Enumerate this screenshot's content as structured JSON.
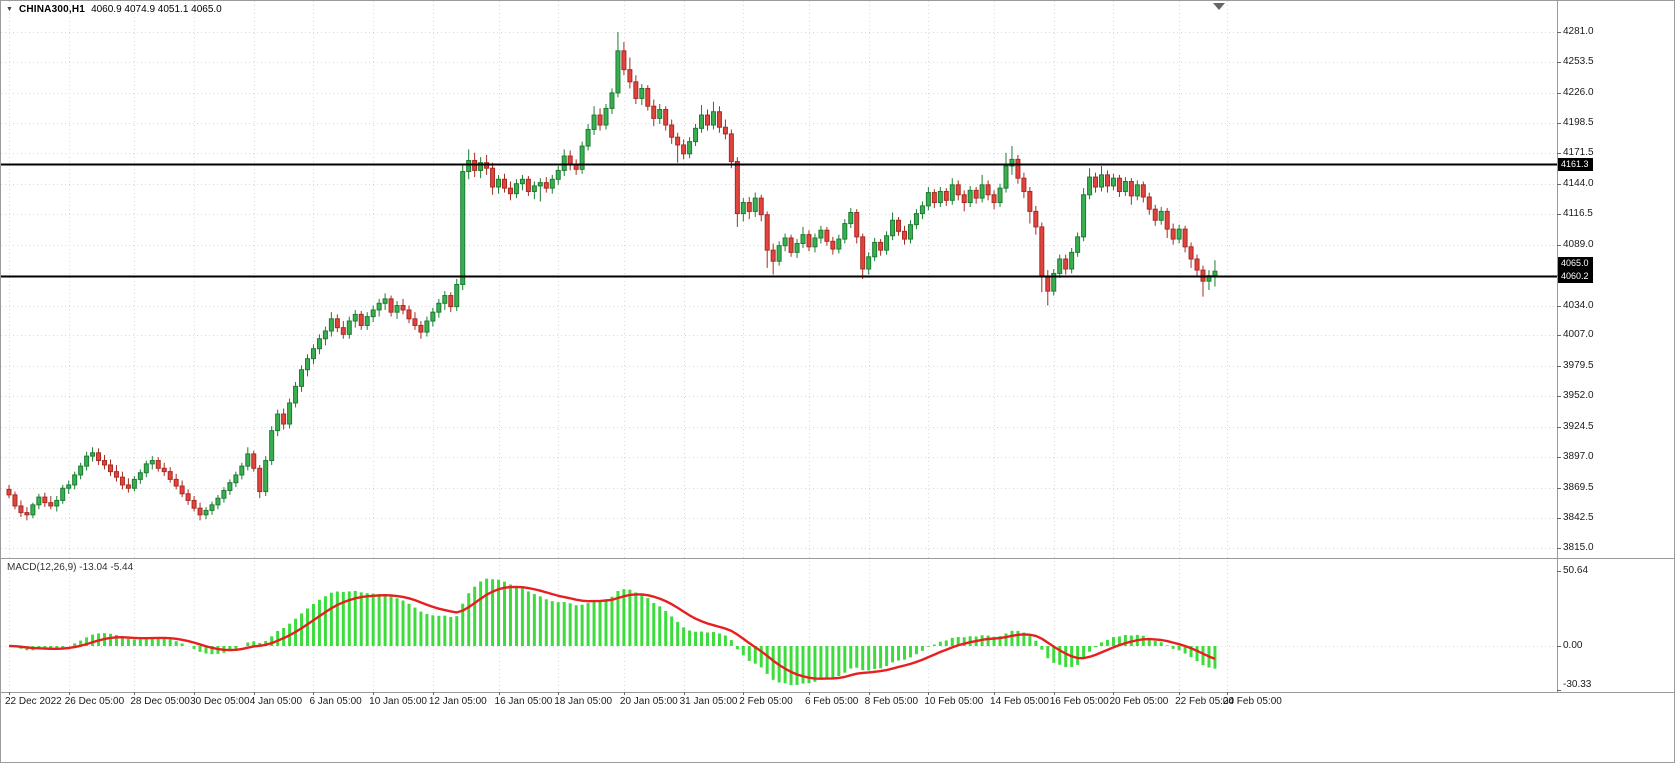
{
  "app": {
    "title": {
      "dropdown_icon": "▼",
      "symbol_timeframe": "CHINA300,H1",
      "ohlc": "4060.9 4074.9 4051.1 4065.0"
    }
  },
  "chart_data": {
    "type": "candlestick",
    "symbol": "CHINA300",
    "timeframe": "H1",
    "last_bar": {
      "open": 4060.9,
      "high": 4074.9,
      "low": 4051.1,
      "close": 4065.0
    },
    "current_price_label": "4065.0",
    "price_axis": {
      "view_max": 4309,
      "view_min": 3806,
      "ticks": [
        "4281.0",
        "4253.5",
        "4226.0",
        "4198.5",
        "4171.5",
        "4144.0",
        "4116.5",
        "4089.0",
        "4061.5",
        "4034.0",
        "4007.0",
        "3979.5",
        "3952.0",
        "3924.5",
        "3897.0",
        "3869.5",
        "3842.5",
        "3815.0"
      ]
    },
    "hlines": [
      {
        "price": 4161.3,
        "label": "4161.3"
      },
      {
        "price": 4060.2,
        "label": "4060.2"
      }
    ],
    "time_axis": {
      "labels": [
        {
          "label": "22 Dec 2022",
          "bar": 0
        },
        {
          "label": "26 Dec 05:00",
          "bar": 10
        },
        {
          "label": "28 Dec 05:00",
          "bar": 21
        },
        {
          "label": "30 Dec 05:00",
          "bar": 31
        },
        {
          "label": "4 Jan 05:00",
          "bar": 41
        },
        {
          "label": "6 Jan 05:00",
          "bar": 51
        },
        {
          "label": "10 Jan 05:00",
          "bar": 61
        },
        {
          "label": "12 Jan 05:00",
          "bar": 71
        },
        {
          "label": "16 Jan 05:00",
          "bar": 82
        },
        {
          "label": "18 Jan 05:00",
          "bar": 92
        },
        {
          "label": "20 Jan 05:00",
          "bar": 103
        },
        {
          "label": "31 Jan 05:00",
          "bar": 113
        },
        {
          "label": "2 Feb 05:00",
          "bar": 123
        },
        {
          "label": "6 Feb 05:00",
          "bar": 134
        },
        {
          "label": "8 Feb 05:00",
          "bar": 144
        },
        {
          "label": "10 Feb 05:00",
          "bar": 154
        },
        {
          "label": "14 Feb 05:00",
          "bar": 165
        },
        {
          "label": "16 Feb 05:00",
          "bar": 175
        },
        {
          "label": "20 Feb 05:00",
          "bar": 185
        },
        {
          "label": "22 Feb 05:00",
          "bar": 196
        },
        {
          "label": "24 Feb 05:00",
          "bar": 204
        }
      ]
    },
    "indicator": {
      "name": "MACD",
      "params": [
        12,
        26,
        9
      ],
      "label": "MACD(12,26,9) -13.04 -5.44",
      "main_value": -13.04,
      "signal_value": -5.44,
      "axis_ticks": [
        {
          "label": "50.64",
          "value": 50.64
        },
        {
          "label": "0.00",
          "value": 0
        },
        {
          "label": "-30.33",
          "value": -30.33
        }
      ]
    },
    "colors": {
      "up_fill": "#3aaf4f",
      "up_border": "#1c7c33",
      "down_fill": "#e0443c",
      "down_border": "#a82a24",
      "grid": "#d9d9d9",
      "separator": "#9a9a9a",
      "hline": "#000000",
      "hist": "#3ddc3d",
      "signal": "#e62020",
      "axis_text": "#1a1a1a"
    },
    "candles": [
      [
        3868,
        3872,
        3860,
        3863
      ],
      [
        3863,
        3866,
        3850,
        3853
      ],
      [
        3853,
        3858,
        3843,
        3847
      ],
      [
        3847,
        3852,
        3840,
        3845
      ],
      [
        3845,
        3856,
        3842,
        3854
      ],
      [
        3854,
        3864,
        3850,
        3861
      ],
      [
        3861,
        3865,
        3852,
        3856
      ],
      [
        3856,
        3862,
        3850,
        3853
      ],
      [
        3853,
        3862,
        3848,
        3858
      ],
      [
        3858,
        3872,
        3855,
        3869
      ],
      [
        3869,
        3876,
        3864,
        3872
      ],
      [
        3872,
        3884,
        3868,
        3881
      ],
      [
        3881,
        3892,
        3877,
        3889
      ],
      [
        3889,
        3902,
        3885,
        3898
      ],
      [
        3898,
        3906,
        3893,
        3901
      ],
      [
        3901,
        3905,
        3890,
        3894
      ],
      [
        3894,
        3899,
        3886,
        3890
      ],
      [
        3890,
        3895,
        3880,
        3884
      ],
      [
        3884,
        3890,
        3875,
        3879
      ],
      [
        3879,
        3884,
        3868,
        3872
      ],
      [
        3872,
        3878,
        3865,
        3869
      ],
      [
        3869,
        3880,
        3866,
        3877
      ],
      [
        3877,
        3886,
        3873,
        3883
      ],
      [
        3883,
        3894,
        3879,
        3891
      ],
      [
        3891,
        3898,
        3886,
        3894
      ],
      [
        3894,
        3897,
        3884,
        3887
      ],
      [
        3887,
        3892,
        3880,
        3884
      ],
      [
        3884,
        3888,
        3874,
        3877
      ],
      [
        3877,
        3882,
        3868,
        3871
      ],
      [
        3871,
        3876,
        3861,
        3864
      ],
      [
        3864,
        3868,
        3854,
        3858
      ],
      [
        3858,
        3862,
        3848,
        3851
      ],
      [
        3851,
        3856,
        3840,
        3845
      ],
      [
        3845,
        3852,
        3841,
        3849
      ],
      [
        3849,
        3857,
        3845,
        3854
      ],
      [
        3854,
        3863,
        3850,
        3860
      ],
      [
        3860,
        3870,
        3856,
        3867
      ],
      [
        3867,
        3877,
        3863,
        3874
      ],
      [
        3874,
        3884,
        3870,
        3881
      ],
      [
        3881,
        3892,
        3877,
        3889
      ],
      [
        3889,
        3906,
        3885,
        3900
      ],
      [
        3900,
        3903,
        3884,
        3887
      ],
      [
        3887,
        3890,
        3860,
        3866
      ],
      [
        3866,
        3898,
        3862,
        3894
      ],
      [
        3894,
        3925,
        3890,
        3921
      ],
      [
        3921,
        3940,
        3916,
        3936
      ],
      [
        3936,
        3941,
        3922,
        3927
      ],
      [
        3927,
        3950,
        3923,
        3946
      ],
      [
        3946,
        3965,
        3942,
        3961
      ],
      [
        3961,
        3980,
        3956,
        3976
      ],
      [
        3976,
        3990,
        3970,
        3986
      ],
      [
        3986,
        3999,
        3981,
        3995
      ],
      [
        3995,
        4008,
        3990,
        4004
      ],
      [
        4004,
        4015,
        3998,
        4011
      ],
      [
        4011,
        4028,
        4006,
        4022
      ],
      [
        4022,
        4026,
        4010,
        4014
      ],
      [
        4014,
        4020,
        4004,
        4008
      ],
      [
        4008,
        4024,
        4004,
        4020
      ],
      [
        4020,
        4030,
        4014,
        4026
      ],
      [
        4026,
        4029,
        4012,
        4016
      ],
      [
        4016,
        4028,
        4012,
        4024
      ],
      [
        4024,
        4034,
        4019,
        4030
      ],
      [
        4030,
        4040,
        4024,
        4036
      ],
      [
        4036,
        4045,
        4030,
        4040
      ],
      [
        4040,
        4043,
        4024,
        4028
      ],
      [
        4028,
        4038,
        4022,
        4034
      ],
      [
        4034,
        4040,
        4026,
        4030
      ],
      [
        4030,
        4034,
        4018,
        4022
      ],
      [
        4022,
        4028,
        4012,
        4016
      ],
      [
        4016,
        4020,
        4004,
        4010
      ],
      [
        4010,
        4024,
        4006,
        4020
      ],
      [
        4020,
        4032,
        4015,
        4028
      ],
      [
        4028,
        4040,
        4023,
        4036
      ],
      [
        4036,
        4047,
        4030,
        4043
      ],
      [
        4043,
        4046,
        4028,
        4033
      ],
      [
        4033,
        4058,
        4029,
        4053
      ],
      [
        4053,
        4162,
        4048,
        4155
      ],
      [
        4155,
        4175,
        4148,
        4165
      ],
      [
        4165,
        4172,
        4150,
        4156
      ],
      [
        4156,
        4168,
        4149,
        4163
      ],
      [
        4163,
        4170,
        4152,
        4158
      ],
      [
        4158,
        4163,
        4134,
        4141
      ],
      [
        4141,
        4152,
        4135,
        4148
      ],
      [
        4148,
        4153,
        4136,
        4140
      ],
      [
        4140,
        4146,
        4129,
        4135
      ],
      [
        4135,
        4148,
        4131,
        4144
      ],
      [
        4144,
        4152,
        4138,
        4148
      ],
      [
        4148,
        4151,
        4133,
        4137
      ],
      [
        4137,
        4146,
        4130,
        4142
      ],
      [
        4142,
        4149,
        4128,
        4145
      ],
      [
        4145,
        4150,
        4136,
        4140
      ],
      [
        4140,
        4152,
        4135,
        4148
      ],
      [
        4148,
        4160,
        4143,
        4156
      ],
      [
        4156,
        4175,
        4151,
        4169
      ],
      [
        4169,
        4174,
        4156,
        4161
      ],
      [
        4161,
        4166,
        4152,
        4157
      ],
      [
        4157,
        4182,
        4153,
        4178
      ],
      [
        4178,
        4198,
        4174,
        4193
      ],
      [
        4193,
        4214,
        4188,
        4206
      ],
      [
        4206,
        4212,
        4192,
        4197
      ],
      [
        4197,
        4216,
        4193,
        4212
      ],
      [
        4212,
        4230,
        4207,
        4226
      ],
      [
        4226,
        4281,
        4222,
        4264
      ],
      [
        4264,
        4272,
        4242,
        4247
      ],
      [
        4247,
        4258,
        4230,
        4236
      ],
      [
        4236,
        4242,
        4216,
        4221
      ],
      [
        4221,
        4234,
        4215,
        4230
      ],
      [
        4230,
        4233,
        4210,
        4214
      ],
      [
        4214,
        4220,
        4196,
        4203
      ],
      [
        4203,
        4216,
        4198,
        4211
      ],
      [
        4211,
        4214,
        4192,
        4197
      ],
      [
        4197,
        4202,
        4180,
        4186
      ],
      [
        4186,
        4190,
        4163,
        4179
      ],
      [
        4179,
        4184,
        4166,
        4171
      ],
      [
        4171,
        4186,
        4167,
        4182
      ],
      [
        4182,
        4198,
        4178,
        4194
      ],
      [
        4194,
        4215,
        4190,
        4206
      ],
      [
        4206,
        4211,
        4192,
        4197
      ],
      [
        4197,
        4218,
        4193,
        4209
      ],
      [
        4209,
        4214,
        4190,
        4195
      ],
      [
        4195,
        4202,
        4184,
        4189
      ],
      [
        4189,
        4193,
        4158,
        4164
      ],
      [
        4164,
        4168,
        4105,
        4117
      ],
      [
        4117,
        4131,
        4110,
        4127
      ],
      [
        4127,
        4132,
        4112,
        4119
      ],
      [
        4119,
        4136,
        4114,
        4131
      ],
      [
        4131,
        4134,
        4110,
        4116
      ],
      [
        4116,
        4119,
        4068,
        4084
      ],
      [
        4084,
        4090,
        4062,
        4074
      ],
      [
        4074,
        4092,
        4070,
        4088
      ],
      [
        4088,
        4099,
        4083,
        4095
      ],
      [
        4095,
        4098,
        4078,
        4082
      ],
      [
        4082,
        4094,
        4077,
        4090
      ],
      [
        4090,
        4105,
        4086,
        4098
      ],
      [
        4098,
        4102,
        4083,
        4087
      ],
      [
        4087,
        4099,
        4082,
        4095
      ],
      [
        4095,
        4106,
        4090,
        4102
      ],
      [
        4102,
        4105,
        4088,
        4092
      ],
      [
        4092,
        4096,
        4080,
        4085
      ],
      [
        4085,
        4098,
        4081,
        4094
      ],
      [
        4094,
        4112,
        4090,
        4108
      ],
      [
        4108,
        4122,
        4104,
        4118
      ],
      [
        4118,
        4121,
        4090,
        4096
      ],
      [
        4096,
        4099,
        4058,
        4067
      ],
      [
        4067,
        4082,
        4062,
        4078
      ],
      [
        4078,
        4095,
        4074,
        4091
      ],
      [
        4091,
        4094,
        4079,
        4084
      ],
      [
        4084,
        4101,
        4080,
        4097
      ],
      [
        4097,
        4118,
        4093,
        4111
      ],
      [
        4111,
        4114,
        4097,
        4101
      ],
      [
        4101,
        4106,
        4089,
        4094
      ],
      [
        4094,
        4111,
        4090,
        4107
      ],
      [
        4107,
        4121,
        4103,
        4117
      ],
      [
        4117,
        4128,
        4112,
        4124
      ],
      [
        4124,
        4141,
        4120,
        4136
      ],
      [
        4136,
        4139,
        4122,
        4127
      ],
      [
        4127,
        4141,
        4123,
        4137
      ],
      [
        4137,
        4140,
        4124,
        4129
      ],
      [
        4129,
        4149,
        4125,
        4143
      ],
      [
        4143,
        4147,
        4129,
        4134
      ],
      [
        4134,
        4138,
        4119,
        4127
      ],
      [
        4127,
        4142,
        4123,
        4138
      ],
      [
        4138,
        4141,
        4126,
        4131
      ],
      [
        4131,
        4152,
        4127,
        4143
      ],
      [
        4143,
        4147,
        4129,
        4134
      ],
      [
        4134,
        4138,
        4121,
        4127
      ],
      [
        4127,
        4144,
        4123,
        4140
      ],
      [
        4140,
        4172,
        4136,
        4160
      ],
      [
        4160,
        4178,
        4152,
        4166
      ],
      [
        4166,
        4170,
        4144,
        4149
      ],
      [
        4149,
        4154,
        4131,
        4137
      ],
      [
        4137,
        4141,
        4108,
        4119
      ],
      [
        4119,
        4124,
        4098,
        4105
      ],
      [
        4105,
        4109,
        4046,
        4060
      ],
      [
        4060,
        4066,
        4034,
        4047
      ],
      [
        4047,
        4067,
        4043,
        4063
      ],
      [
        4063,
        4080,
        4059,
        4076
      ],
      [
        4076,
        4080,
        4062,
        4067
      ],
      [
        4067,
        4086,
        4063,
        4082
      ],
      [
        4082,
        4100,
        4078,
        4096
      ],
      [
        4096,
        4140,
        4092,
        4134
      ],
      [
        4134,
        4158,
        4130,
        4150
      ],
      [
        4150,
        4154,
        4136,
        4141
      ],
      [
        4141,
        4160,
        4137,
        4152
      ],
      [
        4152,
        4156,
        4136,
        4142
      ],
      [
        4142,
        4153,
        4138,
        4149
      ],
      [
        4149,
        4152,
        4132,
        4137
      ],
      [
        4137,
        4150,
        4133,
        4146
      ],
      [
        4146,
        4149,
        4125,
        4133
      ],
      [
        4133,
        4147,
        4129,
        4143
      ],
      [
        4143,
        4146,
        4127,
        4132
      ],
      [
        4132,
        4136,
        4116,
        4121
      ],
      [
        4121,
        4125,
        4106,
        4111
      ],
      [
        4111,
        4123,
        4107,
        4119
      ],
      [
        4119,
        4122,
        4095,
        4103
      ],
      [
        4103,
        4108,
        4089,
        4094
      ],
      [
        4094,
        4107,
        4090,
        4103
      ],
      [
        4103,
        4106,
        4082,
        4087
      ],
      [
        4087,
        4091,
        4068,
        4076
      ],
      [
        4076,
        4080,
        4060,
        4066
      ],
      [
        4066,
        4070,
        4042,
        4056
      ],
      [
        4056,
        4066,
        4048,
        4061
      ],
      [
        4060.9,
        4074.9,
        4051.1,
        4065.0
      ]
    ]
  }
}
